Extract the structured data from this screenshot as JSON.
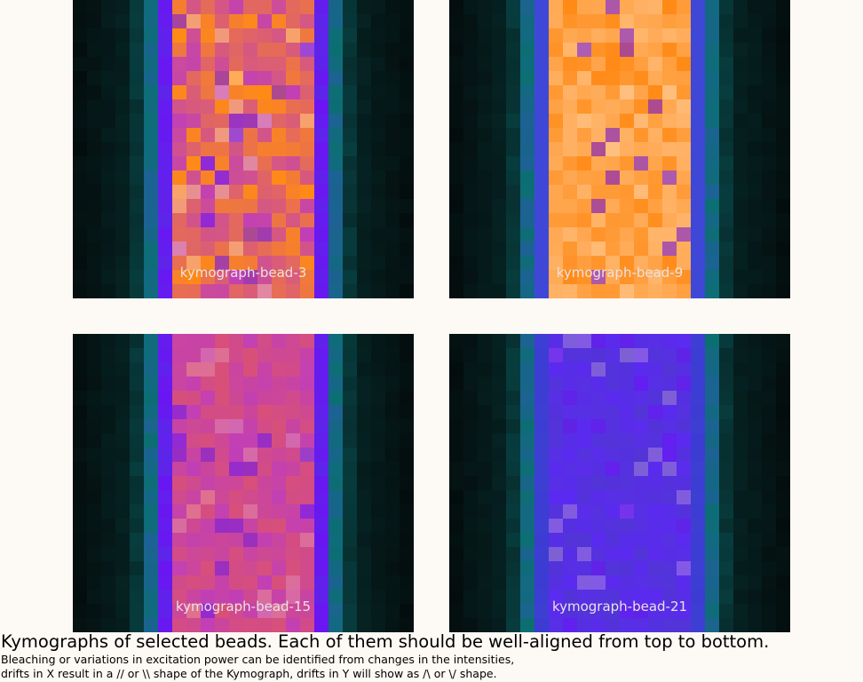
{
  "panels": [
    {
      "label": "kymograph-bead-3",
      "palette": "orange"
    },
    {
      "label": "kymograph-bead-9",
      "palette": "bright"
    },
    {
      "label": "kymograph-bead-15",
      "palette": "magenta"
    },
    {
      "label": "kymograph-bead-21",
      "palette": "violet"
    }
  ],
  "caption": {
    "title": "Kymographs of selected beads. Each of them should be well-aligned from top to bottom.",
    "line1": "Bleaching or variations in excitation power can be identified from changes in the intensities,",
    "line2": "drifts in X result in a // or \\\\ shape of the Kymograph, drifts in Y will show as /\\ or \\/ shape."
  },
  "colors": {
    "page_background": "#fdf9f4",
    "panel_background": "#040b0b",
    "label_text": "#e9e3e3",
    "edge_teal": "#0b6f72",
    "edge_blue": "#3f48d6",
    "edge_violet": "#6a16f2",
    "core_orange": "#ff8a16",
    "core_peach": "#ffb56b",
    "core_magenta": "#c13fb6",
    "core_violet": "#5b2af0"
  }
}
